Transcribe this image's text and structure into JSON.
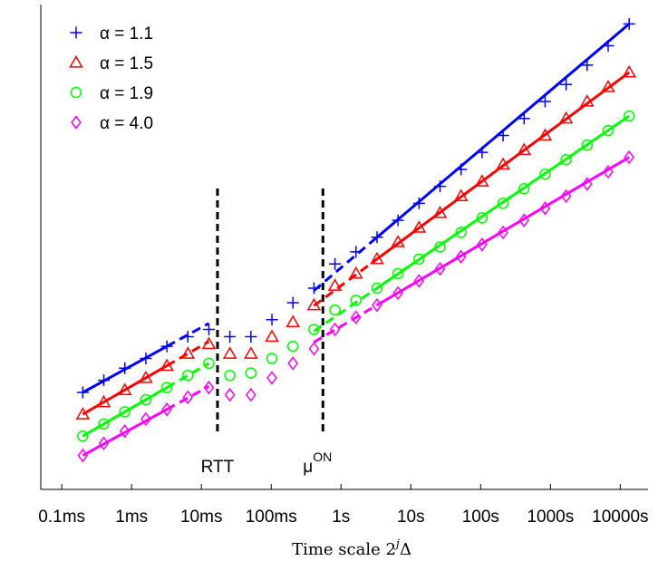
{
  "chart_data": {
    "type": "line",
    "xscale": "log",
    "xlim": [
      5e-05,
      25000
    ],
    "ylim": [
      0,
      20
    ],
    "grid": false,
    "legend_placement": "top-left",
    "xlabel_parts": {
      "prefix": "Time scale ",
      "base": "2",
      "sup": "j",
      "suffix": "Δ"
    },
    "xticks": [
      {
        "value": 0.0001,
        "label": "0.1ms"
      },
      {
        "value": 0.001,
        "label": "1ms"
      },
      {
        "value": 0.01,
        "label": "10ms"
      },
      {
        "value": 0.1,
        "label": "100ms"
      },
      {
        "value": 1,
        "label": "1s"
      },
      {
        "value": 10,
        "label": "10s"
      },
      {
        "value": 100,
        "label": "100s"
      },
      {
        "value": 1000,
        "label": "1000s"
      },
      {
        "value": 10000,
        "label": "10000s"
      }
    ],
    "x": [
      0.0002,
      0.0004,
      0.0008,
      0.0016,
      0.0032,
      0.0064,
      0.0128,
      0.0256,
      0.0512,
      0.1024,
      0.2048,
      0.4096,
      0.8192,
      1.6384,
      3.2768,
      6.5536,
      13.1072,
      26.2144,
      52.4288,
      104.8576,
      209.7152,
      419.4304,
      838.8608,
      1677.7216,
      3355.4432,
      6710.8864,
      13421.7728
    ],
    "series": [
      {
        "name": "α = 1.1",
        "marker": "plus",
        "color": "#0000ff",
        "values": [
          4.0,
          4.5,
          5.0,
          5.4,
          5.9,
          6.3,
          6.6,
          6.3,
          6.3,
          7.0,
          7.7,
          8.3,
          9.3,
          9.8,
          10.4,
          11.1,
          11.8,
          12.5,
          13.2,
          13.9,
          14.6,
          15.3,
          16.0,
          16.7,
          17.5,
          18.3,
          19.2
        ]
      },
      {
        "name": "α = 1.5",
        "marker": "triangle",
        "color": "#ff0000",
        "values": [
          3.1,
          3.6,
          4.1,
          4.6,
          5.1,
          5.6,
          6.0,
          5.6,
          5.6,
          6.3,
          6.9,
          7.6,
          8.4,
          8.9,
          9.5,
          10.2,
          10.8,
          11.4,
          12.1,
          12.7,
          13.4,
          14.0,
          14.6,
          15.3,
          16.0,
          16.6,
          17.2
        ]
      },
      {
        "name": "α = 1.9",
        "marker": "circle",
        "color": "#00ff00",
        "values": [
          2.2,
          2.7,
          3.2,
          3.7,
          4.2,
          4.7,
          5.2,
          4.7,
          4.8,
          5.4,
          5.9,
          6.6,
          7.4,
          7.8,
          8.3,
          8.9,
          9.5,
          10.0,
          10.6,
          11.2,
          11.8,
          12.4,
          13.0,
          13.6,
          14.2,
          14.8,
          15.4
        ]
      },
      {
        "name": "α = 4.0",
        "marker": "diamond",
        "color": "#ff00ff",
        "values": [
          1.4,
          1.9,
          2.4,
          2.9,
          3.3,
          3.8,
          4.2,
          3.9,
          3.9,
          4.6,
          5.2,
          5.8,
          6.6,
          7.1,
          7.6,
          8.1,
          8.6,
          9.1,
          9.6,
          10.1,
          10.6,
          11.1,
          11.6,
          12.1,
          12.6,
          13.1,
          13.7
        ]
      }
    ],
    "fit_lines": [
      {
        "series": 0,
        "from": 0,
        "to": 4,
        "dashed_to": 6
      },
      {
        "series": 1,
        "from": 0,
        "to": 4,
        "dashed_to": 6
      },
      {
        "series": 2,
        "from": 0,
        "to": 4,
        "dashed_to": 6
      },
      {
        "series": 3,
        "from": 0,
        "to": 4,
        "dashed_to": 6
      },
      {
        "series": 0,
        "from": 14,
        "to": 26,
        "dashed_from": 11
      },
      {
        "series": 1,
        "from": 14,
        "to": 26,
        "dashed_from": 11
      },
      {
        "series": 2,
        "from": 14,
        "to": 26,
        "dashed_from": 11
      },
      {
        "series": 3,
        "from": 14,
        "to": 26,
        "dashed_from": 11
      }
    ],
    "vlines": [
      {
        "x": 0.017,
        "label": "RTT"
      },
      {
        "x": 0.55,
        "label": "μ",
        "sup": "ON"
      }
    ]
  }
}
